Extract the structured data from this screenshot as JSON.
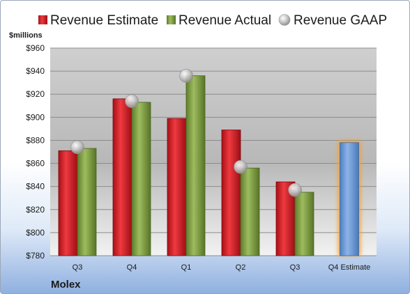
{
  "chart_data": {
    "type": "bar",
    "unit_label": "$millions",
    "company": "Molex",
    "categories": [
      "Q3",
      "Q4",
      "Q1",
      "Q2",
      "Q3",
      "Q4 Estimate"
    ],
    "ylim": [
      780,
      960
    ],
    "yticks": [
      780,
      800,
      820,
      840,
      860,
      880,
      900,
      920,
      940,
      960
    ],
    "ytick_labels": [
      "$780",
      "$800",
      "$820",
      "$840",
      "$860",
      "$880",
      "$900",
      "$920",
      "$940",
      "$960"
    ],
    "grid": true,
    "legend_position": "top",
    "series": [
      {
        "name": "Revenue Estimate",
        "type": "bar",
        "color": "#d9262e",
        "values": [
          871,
          916,
          899,
          889,
          844,
          null
        ]
      },
      {
        "name": "Revenue Actual",
        "type": "bar",
        "color": "#82a048",
        "values": [
          873,
          913,
          936,
          856,
          835,
          null
        ]
      },
      {
        "name": "Revenue GAAP",
        "type": "marker",
        "color": "#b9b9b9",
        "values": [
          874,
          914,
          936,
          857,
          837,
          null
        ]
      }
    ],
    "estimate_bar": {
      "category": "Q4 Estimate",
      "value": 878,
      "color": "#6f9bd6",
      "glow": "#f5a030"
    }
  }
}
